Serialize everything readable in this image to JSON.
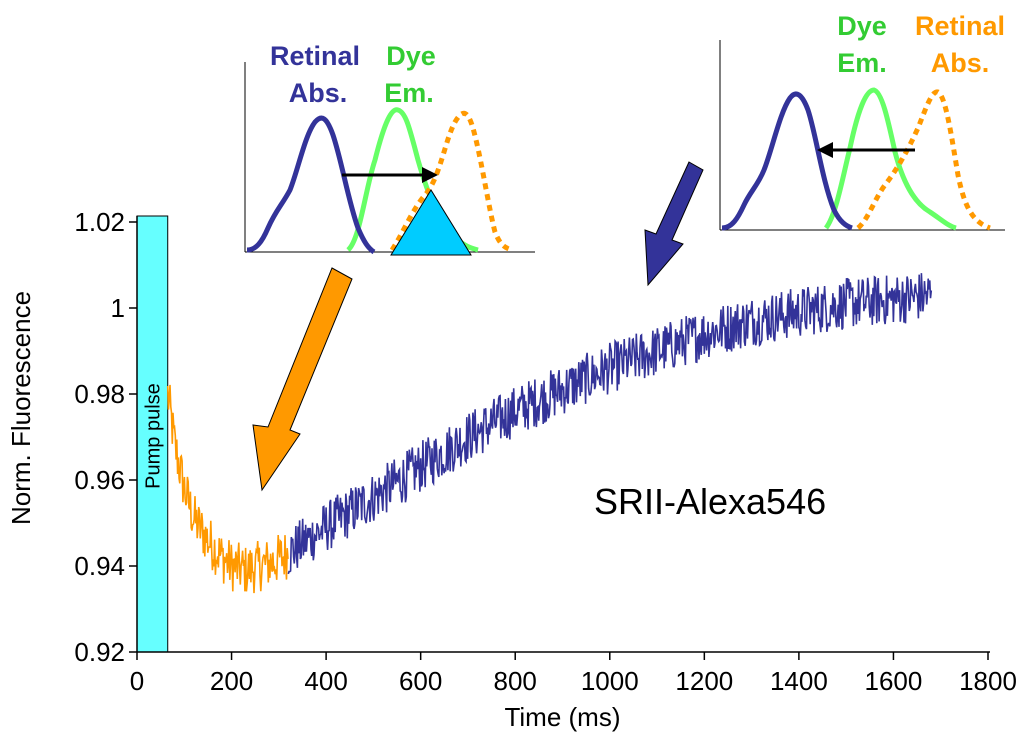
{
  "chart_data": {
    "type": "line",
    "xlabel": "Time (ms)",
    "ylabel": "Norm. Fluorescence",
    "xlim": [
      0,
      1800
    ],
    "ylim": [
      0.92,
      1.025
    ],
    "xticks": [
      0,
      200,
      400,
      600,
      800,
      1000,
      1200,
      1400,
      1600,
      1800
    ],
    "xtick_labels": [
      "0",
      "200",
      "400",
      "600",
      "800",
      "1000",
      "1200",
      "1400",
      "1600",
      "1800"
    ],
    "yticks": [
      0.92,
      0.94,
      0.96,
      0.98,
      1.0,
      1.02
    ],
    "ytick_labels": [
      "0.92",
      "0.94",
      "0.96",
      "0.98",
      "1",
      "1.02"
    ],
    "pump_pulse": {
      "label": "Pump pulse",
      "x_start": 0,
      "x_end": 65,
      "color": "#66ffff"
    },
    "series": [
      {
        "color": "#ff9900",
        "x": [
          65,
          80,
          100,
          120,
          150,
          180,
          200,
          230,
          260,
          290,
          320
        ],
        "y": [
          0.98,
          0.968,
          0.958,
          0.951,
          0.946,
          0.942,
          0.94,
          0.939,
          0.94,
          0.941,
          0.943
        ],
        "noise": 0.006
      },
      {
        "color": "#333399",
        "x": [
          320,
          400,
          500,
          600,
          700,
          800,
          900,
          1000,
          1100,
          1200,
          1300,
          1400,
          1500,
          1600,
          1680
        ],
        "y": [
          0.943,
          0.949,
          0.956,
          0.963,
          0.97,
          0.976,
          0.981,
          0.986,
          0.99,
          0.994,
          0.997,
          0.999,
          1.001,
          1.002,
          1.003
        ],
        "noise": 0.006
      }
    ],
    "annotation": "SRII-Alexa546",
    "insets": [
      {
        "labels": [
          {
            "line1": "Retinal",
            "line2": "Abs.",
            "color": "#333399"
          },
          {
            "line1": "Dye",
            "line2": "Em.",
            "color": "#33cc33"
          }
        ],
        "arrow": "right",
        "curves": [
          "Retinal Abs.",
          "Dye Em.",
          "Retinal Abs. (shifted)"
        ]
      },
      {
        "labels": [
          {
            "line1": "Dye",
            "line2": "Em.",
            "color": "#33cc33"
          },
          {
            "line1": "Retinal",
            "line2": "Abs.",
            "color": "#ff9900"
          }
        ],
        "arrow": "left",
        "curves": [
          "Retinal Abs.",
          "Dye Em.",
          "Retinal Abs. (shifted)"
        ]
      }
    ],
    "colors": {
      "orange": "#ff9900",
      "navy": "#333399",
      "green": "#66ff66",
      "cyan_triangle": "#00ccff",
      "pump": "#66ffff"
    }
  }
}
